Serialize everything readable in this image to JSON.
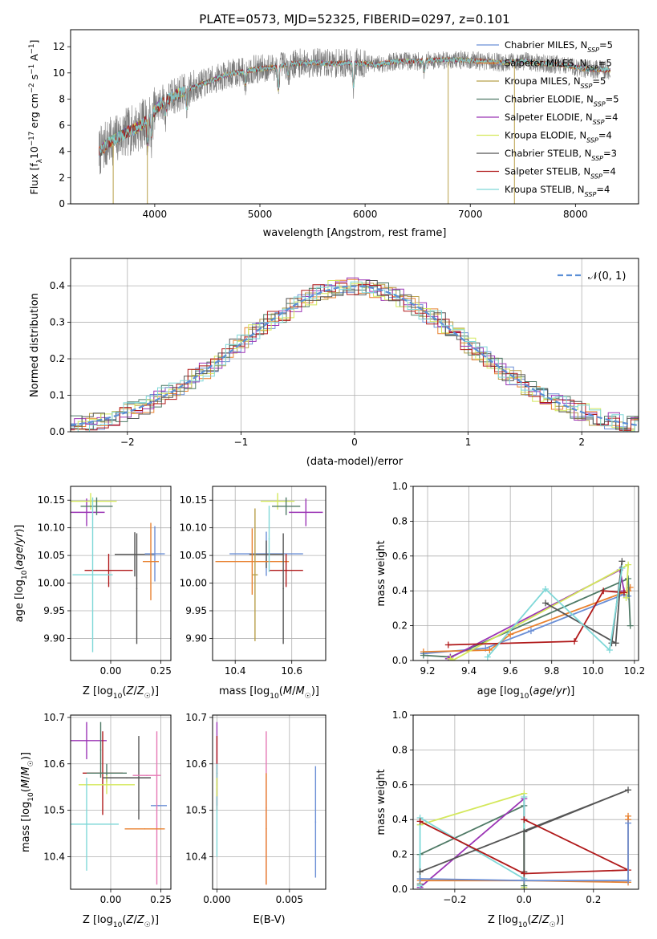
{
  "figure": {
    "title": "PLATE=0573, MJD=52325, FIBERID=0297, z=0.101"
  },
  "colors": {
    "Chabrier MILES": "#6b8fd6",
    "Salpeter MILES": "#e8812f",
    "Kroupa MILES": "#b8a04a",
    "Chabrier ELODIE": "#4f7a66",
    "Salpeter ELODIE": "#9b34b5",
    "Kroupa ELODIE": "#d4e85b",
    "Chabrier STELIB": "#555555",
    "Salpeter STELIB": "#b0191a",
    "Kroupa STELIB": "#7fd8d8",
    "extra_pink": "#e678b4",
    "normal_curve": "#5b8fd6",
    "grid": "#b0b0b0"
  },
  "chart_data": [
    {
      "id": "spectrum",
      "type": "line",
      "xlabel": "wavelength [Angstrom, rest frame]",
      "ylabel": "Flux [f_λ10^-17 erg cm^-2 s^-1 A^-1]",
      "xlim": [
        3200,
        8600
      ],
      "ylim": [
        0,
        13.3
      ],
      "xticks": [
        4000,
        5000,
        6000,
        7000,
        8000
      ],
      "yticks": [
        0,
        2,
        4,
        6,
        8,
        10,
        12
      ],
      "grid": false,
      "legend_position": "right",
      "legend": [
        {
          "label": "Chabrier MILES, N_SSP=5",
          "color": "#6b8fd6"
        },
        {
          "label": "Salpeter MILES, N_SSP=5",
          "color": "#e8812f"
        },
        {
          "label": "Kroupa MILES, N_SSP=5",
          "color": "#b8a04a"
        },
        {
          "label": "Chabrier ELODIE, N_SSP=5",
          "color": "#4f7a66"
        },
        {
          "label": "Salpeter ELODIE, N_SSP=4",
          "color": "#9b34b5"
        },
        {
          "label": "Kroupa ELODIE, N_SSP=4",
          "color": "#d4e85b"
        },
        {
          "label": "Chabrier STELIB, N_SSP=3",
          "color": "#555555"
        },
        {
          "label": "Salpeter STELIB, N_SSP=4",
          "color": "#b0191a"
        },
        {
          "label": "Kroupa STELIB, N_SSP=4",
          "color": "#7fd8d8"
        }
      ],
      "continuum_points": {
        "x": [
          3470,
          3550,
          3700,
          3850,
          3950,
          4050,
          4150,
          4300,
          4500,
          4700,
          4900,
          5100,
          5300,
          5500,
          5700,
          5900,
          6100,
          6300,
          6500,
          6700,
          6900,
          7100,
          7300,
          7500,
          7700,
          7900,
          8100,
          8330
        ],
        "y": [
          3.9,
          4.6,
          5.3,
          5.9,
          6.6,
          7.6,
          8.1,
          8.7,
          9.3,
          9.9,
          10.2,
          10.4,
          10.7,
          10.8,
          10.7,
          10.8,
          10.6,
          10.9,
          10.9,
          11.0,
          11.0,
          10.9,
          10.8,
          10.9,
          10.7,
          10.6,
          10.3,
          10.2
        ]
      },
      "absorption_features": [
        {
          "x": 3934,
          "depth": 1.8
        },
        {
          "x": 3969,
          "depth": 1.6
        },
        {
          "x": 4102,
          "depth": 1.0
        },
        {
          "x": 4304,
          "depth": 1.4
        },
        {
          "x": 4861,
          "depth": 1.0
        },
        {
          "x": 5175,
          "depth": 1.8
        },
        {
          "x": 5270,
          "depth": 0.9
        },
        {
          "x": 5890,
          "depth": 1.8
        },
        {
          "x": 6563,
          "depth": 0.8
        }
      ],
      "data_spikes": [
        {
          "x": 6790,
          "y": 0.0
        },
        {
          "x": 7420,
          "y": 0.0
        },
        {
          "x": 3930,
          "y": 0.0
        },
        {
          "x": 3605,
          "y": 0.0
        }
      ]
    },
    {
      "id": "residuals",
      "type": "histogram",
      "xlabel": "(data-model)/error",
      "ylabel": "Normed distribution",
      "xlim": [
        -2.5,
        2.5
      ],
      "ylim": [
        0,
        0.475
      ],
      "xticks": [
        -2,
        -1,
        0,
        1,
        2
      ],
      "yticks": [
        0.0,
        0.1,
        0.2,
        0.3,
        0.4
      ],
      "grid": true,
      "legend_position": "top-right",
      "legend": [
        {
          "label": "𝒩(0, 1)",
          "color": "#5b8fd6",
          "style": "dashed"
        }
      ],
      "bin_width": 0.1,
      "jitter_seeds": [
        1,
        2,
        3,
        4,
        5,
        6,
        7,
        8,
        9
      ]
    },
    {
      "id": "age_vs_Z",
      "type": "errorbar",
      "xlabel": "Z [log10(Z/Z☉)]",
      "ylabel": "age  [log10(age/yr)]",
      "xlim": [
        -0.2,
        0.3
      ],
      "ylim": [
        9.86,
        10.175
      ],
      "xticks": [
        0.0,
        0.25
      ],
      "xticklabels": [
        "0.00",
        "0.25"
      ],
      "yticks": [
        9.9,
        9.95,
        10.0,
        10.05,
        10.1,
        10.15
      ],
      "grid": true,
      "points": [
        {
          "x": -0.12,
          "y": 10.128,
          "xerr": 0.09,
          "yerr": 0.025,
          "color": "#9b34b5"
        },
        {
          "x": -0.1,
          "y": 10.148,
          "xerr": 0.13,
          "yerr": 0.015,
          "color": "#d4e85b"
        },
        {
          "x": -0.07,
          "y": 10.139,
          "xerr": 0.08,
          "yerr": 0.016,
          "color": "#4f7a66"
        },
        {
          "x": 0.12,
          "y": 10.052,
          "xerr": 0.1,
          "yerr": 0.04,
          "color": "#555555"
        },
        {
          "x": 0.22,
          "y": 10.053,
          "xerr": 0.05,
          "yerr": 0.05,
          "color": "#6b8fd6"
        },
        {
          "x": 0.2,
          "y": 10.039,
          "xerr": 0.04,
          "yerr": 0.07,
          "color": "#e8812f"
        },
        {
          "x": -0.01,
          "y": 10.023,
          "xerr": 0.12,
          "yerr": 0.03,
          "color": "#b0191a"
        },
        {
          "x": -0.09,
          "y": 10.015,
          "xerr": 0.1,
          "yerr": 0.14,
          "color": "#7fd8d8"
        },
        {
          "x": 0.13,
          "y": 9.99,
          "xerr": 0.0,
          "yerr": 0.1,
          "color": "#555555"
        }
      ]
    },
    {
      "id": "age_vs_mass",
      "type": "errorbar",
      "xlabel": "mass [log10(M/M☉)]",
      "ylabel": "",
      "xlim": [
        10.32,
        10.72
      ],
      "ylim": [
        9.86,
        10.175
      ],
      "xticks": [
        10.4,
        10.6
      ],
      "xticklabels": [
        "10.4",
        "10.6"
      ],
      "yticks": [
        9.9,
        9.95,
        10.0,
        10.05,
        10.1,
        10.15
      ],
      "grid": true,
      "points": [
        {
          "x": 10.65,
          "y": 10.128,
          "xerr": 0.06,
          "yerr": 0.025,
          "color": "#9b34b5"
        },
        {
          "x": 10.55,
          "y": 10.148,
          "xerr": 0.06,
          "yerr": 0.015,
          "color": "#d4e85b"
        },
        {
          "x": 10.58,
          "y": 10.139,
          "xerr": 0.05,
          "yerr": 0.016,
          "color": "#4f7a66"
        },
        {
          "x": 10.51,
          "y": 10.053,
          "xerr": 0.13,
          "yerr": 0.04,
          "color": "#6b8fd6"
        },
        {
          "x": 10.51,
          "y": 10.052,
          "xerr": 0.06,
          "yerr": 0.025,
          "color": "#555555"
        },
        {
          "x": 10.46,
          "y": 10.039,
          "xerr": 0.13,
          "yerr": 0.06,
          "color": "#e8812f"
        },
        {
          "x": 10.58,
          "y": 10.023,
          "xerr": 0.06,
          "yerr": 0.03,
          "color": "#b0191a"
        },
        {
          "x": 10.47,
          "y": 10.015,
          "xerr": 0.01,
          "yerr": 0.12,
          "color": "#b8a04a"
        },
        {
          "x": 10.57,
          "y": 9.99,
          "xerr": 0.0,
          "yerr": 0.1,
          "color": "#555555"
        },
        {
          "x": 10.52,
          "y": 10.08,
          "xerr": 0.0,
          "yerr": 0.06,
          "color": "#7fd8d8"
        }
      ]
    },
    {
      "id": "weight_vs_age",
      "type": "line",
      "xlabel": "age  [log10(age/yr)]",
      "ylabel": "mass weight",
      "xlim": [
        9.13,
        10.22
      ],
      "ylim": [
        0,
        1.0
      ],
      "xticks": [
        9.2,
        9.4,
        9.6,
        9.8,
        10.0,
        10.2
      ],
      "xticklabels": [
        "9.2",
        "9.4",
        "9.6",
        "9.8",
        "10.0",
        "10.2"
      ],
      "yticks": [
        0.0,
        0.2,
        0.4,
        0.6,
        0.8,
        1.0
      ],
      "grid": true,
      "series": [
        {
          "color": "#6b8fd6",
          "x": [
            9.18,
            9.48,
            9.7,
            10.15,
            10.17
          ],
          "y": [
            0.04,
            0.07,
            0.17,
            0.38,
            0.37
          ]
        },
        {
          "color": "#e8812f",
          "x": [
            9.18,
            9.5,
            9.6,
            10.17,
            10.18
          ],
          "y": [
            0.05,
            0.06,
            0.15,
            0.4,
            0.42
          ]
        },
        {
          "color": "#4f7a66",
          "x": [
            9.18,
            9.31,
            10.17,
            10.18
          ],
          "y": [
            0.03,
            0.02,
            0.47,
            0.2
          ]
        },
        {
          "color": "#9b34b5",
          "x": [
            9.31,
            9.3,
            10.13,
            10.15
          ],
          "y": [
            0.02,
            0.01,
            0.52,
            0.4
          ]
        },
        {
          "color": "#d4e85b",
          "x": [
            9.31,
            9.32,
            10.17,
            10.16
          ],
          "y": [
            0.01,
            0.0,
            0.55,
            0.36
          ]
        },
        {
          "color": "#555555",
          "x": [
            9.77,
            10.11,
            10.14,
            10.09
          ],
          "y": [
            0.33,
            0.1,
            0.57,
            0.1
          ]
        },
        {
          "color": "#b0191a",
          "x": [
            9.3,
            9.91,
            10.05,
            10.15
          ],
          "y": [
            0.09,
            0.11,
            0.4,
            0.39
          ]
        },
        {
          "color": "#7fd8d8",
          "x": [
            9.49,
            9.77,
            10.08,
            10.14
          ],
          "y": [
            0.02,
            0.41,
            0.06,
            0.53
          ]
        }
      ]
    },
    {
      "id": "mass_vs_Z",
      "type": "errorbar",
      "xlabel": "Z [log10(Z/Z☉)]",
      "ylabel": "mass [log10(M/M☉)]",
      "xlim": [
        -0.2,
        0.3
      ],
      "ylim": [
        10.33,
        10.705
      ],
      "xticks": [
        0.0,
        0.25
      ],
      "xticklabels": [
        "0.00",
        "0.25"
      ],
      "yticks": [
        10.4,
        10.5,
        10.6,
        10.7
      ],
      "grid": true,
      "points": [
        {
          "x": -0.12,
          "y": 10.65,
          "xerr": 0.1,
          "yerr": 0.04,
          "color": "#9b34b5"
        },
        {
          "x": -0.05,
          "y": 10.63,
          "xerr": 0.0,
          "yerr": 0.06,
          "color": "#4f7a66"
        },
        {
          "x": -0.04,
          "y": 10.58,
          "xerr": 0.1,
          "yerr": 0.09,
          "color": "#b0191a"
        },
        {
          "x": -0.02,
          "y": 10.58,
          "xerr": 0.1,
          "yerr": 0.02,
          "color": "#4f7a66"
        },
        {
          "x": -0.02,
          "y": 10.555,
          "xerr": 0.14,
          "yerr": 0.02,
          "color": "#d4e85b"
        },
        {
          "x": 0.08,
          "y": 10.57,
          "xerr": 0.12,
          "yerr": 0.0,
          "color": "#555555"
        },
        {
          "x": 0.14,
          "y": 10.57,
          "xerr": 0.0,
          "yerr": 0.09,
          "color": "#555555"
        },
        {
          "x": 0.18,
          "y": 10.575,
          "xerr": 0.07,
          "yerr": 0.0,
          "color": "#e678b4"
        },
        {
          "x": 0.24,
          "y": 10.51,
          "xerr": 0.04,
          "yerr": 0.0,
          "color": "#6b8fd6"
        },
        {
          "x": 0.23,
          "y": 10.505,
          "xerr": 0.0,
          "yerr": 0.165,
          "color": "#e678b4"
        },
        {
          "x": 0.17,
          "y": 10.46,
          "xerr": 0.1,
          "yerr": 0.0,
          "color": "#e8812f"
        },
        {
          "x": -0.12,
          "y": 10.47,
          "xerr": 0.16,
          "yerr": 0.1,
          "color": "#7fd8d8"
        }
      ]
    },
    {
      "id": "mass_vs_ebv",
      "type": "errorbar",
      "xlabel": "E(B-V)",
      "ylabel": "",
      "xlim": [
        -0.0003,
        0.0075
      ],
      "ylim": [
        10.33,
        10.705
      ],
      "xticks": [
        0.0,
        0.005
      ],
      "xticklabels": [
        "0.000",
        "0.005"
      ],
      "yticks": [
        10.4,
        10.5,
        10.6,
        10.7
      ],
      "grid": true,
      "points": [
        {
          "x": 0.0,
          "y": 10.6,
          "xerr": 0,
          "yerr": 0.09,
          "color": "#9b34b5"
        },
        {
          "x": 0.0,
          "y": 10.58,
          "xerr": 0,
          "yerr": 0.08,
          "color": "#b0191a"
        },
        {
          "x": 0.0,
          "y": 10.5,
          "xerr": 0,
          "yerr": 0.1,
          "color": "#7fd8d8"
        },
        {
          "x": 0.0,
          "y": 10.55,
          "xerr": 0,
          "yerr": 0.02,
          "color": "#d4e85b"
        },
        {
          "x": 0.0034,
          "y": 10.505,
          "xerr": 0,
          "yerr": 0.165,
          "color": "#e678b4"
        },
        {
          "x": 0.0034,
          "y": 10.46,
          "xerr": 0,
          "yerr": 0.12,
          "color": "#e8812f"
        },
        {
          "x": 0.0068,
          "y": 10.475,
          "xerr": 0,
          "yerr": 0.12,
          "color": "#6b8fd6"
        }
      ]
    },
    {
      "id": "weight_vs_Z",
      "type": "line",
      "xlabel": "Z [log10(Z/Z☉)]",
      "ylabel": "mass weight",
      "xlim": [
        -0.32,
        0.33
      ],
      "ylim": [
        0,
        1.0
      ],
      "xticks": [
        -0.2,
        0.0,
        0.2
      ],
      "xticklabels": [
        "−0.2",
        "0.0",
        "0.2"
      ],
      "yticks": [
        0.0,
        0.2,
        0.4,
        0.6,
        0.8,
        1.0
      ],
      "grid": true,
      "series": [
        {
          "color": "#d4e85b",
          "x": [
            -0.3,
            0.0,
            0.0
          ],
          "y": [
            0.37,
            0.55,
            0.01
          ]
        },
        {
          "color": "#4f7a66",
          "x": [
            -0.3,
            -0.3,
            0.0,
            0.0
          ],
          "y": [
            0.03,
            0.2,
            0.48,
            0.02
          ]
        },
        {
          "color": "#9b34b5",
          "x": [
            -0.3,
            0.0,
            0.0
          ],
          "y": [
            0.01,
            0.52,
            0.4
          ]
        },
        {
          "color": "#7fd8d8",
          "x": [
            -0.3,
            -0.3,
            0.0,
            0.0
          ],
          "y": [
            0.02,
            0.41,
            0.06,
            0.53
          ]
        },
        {
          "color": "#555555",
          "x": [
            -0.3,
            0.3,
            0.0,
            0.0
          ],
          "y": [
            0.1,
            0.57,
            0.33,
            0.1
          ]
        },
        {
          "color": "#b0191a",
          "x": [
            -0.3,
            0.0,
            0.3,
            0.0
          ],
          "y": [
            0.39,
            0.09,
            0.11,
            0.4
          ]
        },
        {
          "color": "#e8812f",
          "x": [
            -0.3,
            0.0,
            0.3,
            0.3,
            0.3
          ],
          "y": [
            0.05,
            0.05,
            0.04,
            0.4,
            0.42
          ]
        },
        {
          "color": "#6b8fd6",
          "x": [
            -0.3,
            0.0,
            0.3,
            0.3
          ],
          "y": [
            0.06,
            0.05,
            0.05,
            0.38
          ]
        }
      ]
    }
  ]
}
